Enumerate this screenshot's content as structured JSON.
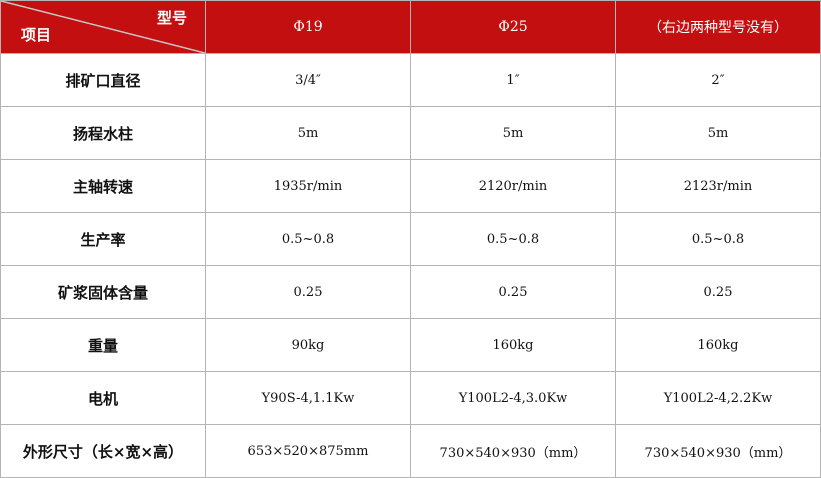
{
  "header": {
    "corner_top": "型号",
    "corner_bottom": "项目",
    "models": [
      "Φ19",
      "Φ25",
      "（右边两种型号没有）"
    ]
  },
  "rows": [
    {
      "label": "排矿口直径",
      "values": [
        "3/4″",
        "1″",
        "2″"
      ]
    },
    {
      "label": "扬程水柱",
      "values": [
        "5m",
        "5m",
        "5m"
      ]
    },
    {
      "label": "主轴转速",
      "values": [
        "1935r/min",
        "2120r/min",
        "2123r/min"
      ]
    },
    {
      "label": "生产率",
      "values": [
        "0.5~0.8",
        "0.5~0.8",
        "0.5~0.8"
      ]
    },
    {
      "label": "矿浆固体含量",
      "values": [
        "0.25",
        "0.25",
        "0.25"
      ]
    },
    {
      "label": "重量",
      "values": [
        "90kg",
        "160kg",
        "160kg"
      ]
    },
    {
      "label": "电机",
      "values": [
        "Y90S-4,1.1Kw",
        "Y100L2-4,3.0Kw",
        "Y100L2-4,2.2Kw"
      ]
    },
    {
      "label": "外形尺寸（长×宽×高）",
      "values": [
        "653×520×875mm",
        "730×540×930（mm）",
        "730×540×930（mm）"
      ]
    }
  ],
  "colors": {
    "header_bg": "#c30f0f",
    "border": "#b4b4b4"
  }
}
